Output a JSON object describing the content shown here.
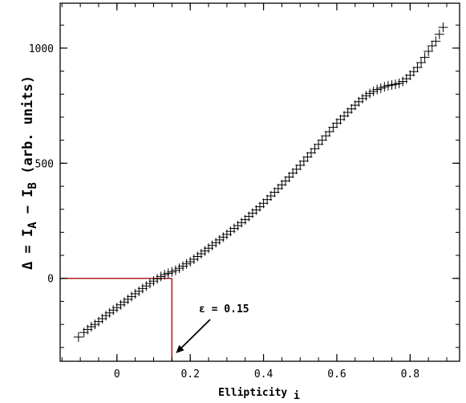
{
  "chart_data": {
    "type": "scatter",
    "marker": "plus",
    "marker_color": "#000000",
    "xlabel": "Ellipticity",
    "xlabel_subscript": "i",
    "ylabel_parts": [
      "Δ = ",
      "I",
      "A",
      " − ",
      "I",
      "B",
      " (arb. units)"
    ],
    "xlim": [
      -0.155,
      0.935
    ],
    "ylim": [
      -360,
      1195
    ],
    "xticks": [
      0,
      0.2,
      0.4,
      0.6,
      0.8
    ],
    "xtick_labels": [
      "0",
      "0.2",
      "0.4",
      "0.6",
      "0.8"
    ],
    "yticks": [
      0,
      500,
      1000
    ],
    "ytick_labels": [
      "0",
      "500",
      "1000"
    ],
    "x": [
      -0.105,
      -0.09,
      -0.08,
      -0.07,
      -0.06,
      -0.05,
      -0.04,
      -0.03,
      -0.02,
      -0.01,
      0.0,
      0.01,
      0.02,
      0.03,
      0.04,
      0.05,
      0.06,
      0.07,
      0.08,
      0.09,
      0.1,
      0.11,
      0.12,
      0.13,
      0.14,
      0.15,
      0.16,
      0.17,
      0.18,
      0.19,
      0.2,
      0.21,
      0.22,
      0.23,
      0.24,
      0.25,
      0.26,
      0.27,
      0.28,
      0.29,
      0.3,
      0.31,
      0.32,
      0.33,
      0.34,
      0.35,
      0.36,
      0.37,
      0.38,
      0.39,
      0.4,
      0.41,
      0.42,
      0.43,
      0.44,
      0.45,
      0.46,
      0.47,
      0.48,
      0.49,
      0.5,
      0.51,
      0.52,
      0.53,
      0.54,
      0.55,
      0.56,
      0.57,
      0.58,
      0.59,
      0.6,
      0.61,
      0.62,
      0.63,
      0.64,
      0.65,
      0.66,
      0.67,
      0.68,
      0.69,
      0.7,
      0.71,
      0.72,
      0.73,
      0.74,
      0.75,
      0.76,
      0.77,
      0.78,
      0.79,
      0.8,
      0.81,
      0.82,
      0.83,
      0.84,
      0.85,
      0.86,
      0.87,
      0.88,
      0.89
    ],
    "y": [
      -255,
      -235,
      -222,
      -210,
      -200,
      -188,
      -175,
      -162,
      -150,
      -138,
      -127,
      -115,
      -103,
      -91,
      -79,
      -67,
      -56,
      -44,
      -33,
      -22,
      -12,
      -2,
      8,
      16,
      22,
      28,
      35,
      44,
      53,
      63,
      72,
      83,
      95,
      107,
      119,
      131,
      143,
      155,
      167,
      179,
      191,
      204,
      217,
      229,
      242,
      255,
      269,
      283,
      297,
      311,
      326,
      342,
      358,
      374,
      390,
      406,
      423,
      440,
      457,
      474,
      491,
      509,
      527,
      545,
      563,
      582,
      600,
      619,
      637,
      656,
      674,
      690,
      705,
      721,
      736,
      752,
      767,
      781,
      793,
      803,
      812,
      820,
      826,
      832,
      837,
      840,
      843,
      847,
      855,
      867,
      882,
      898,
      916,
      937,
      960,
      986,
      1010,
      1030,
      1060,
      1090
    ],
    "reference_x": 0.15,
    "reference_y": 0,
    "reference_color": "#b22222",
    "annotation": "ε = 0.15"
  }
}
